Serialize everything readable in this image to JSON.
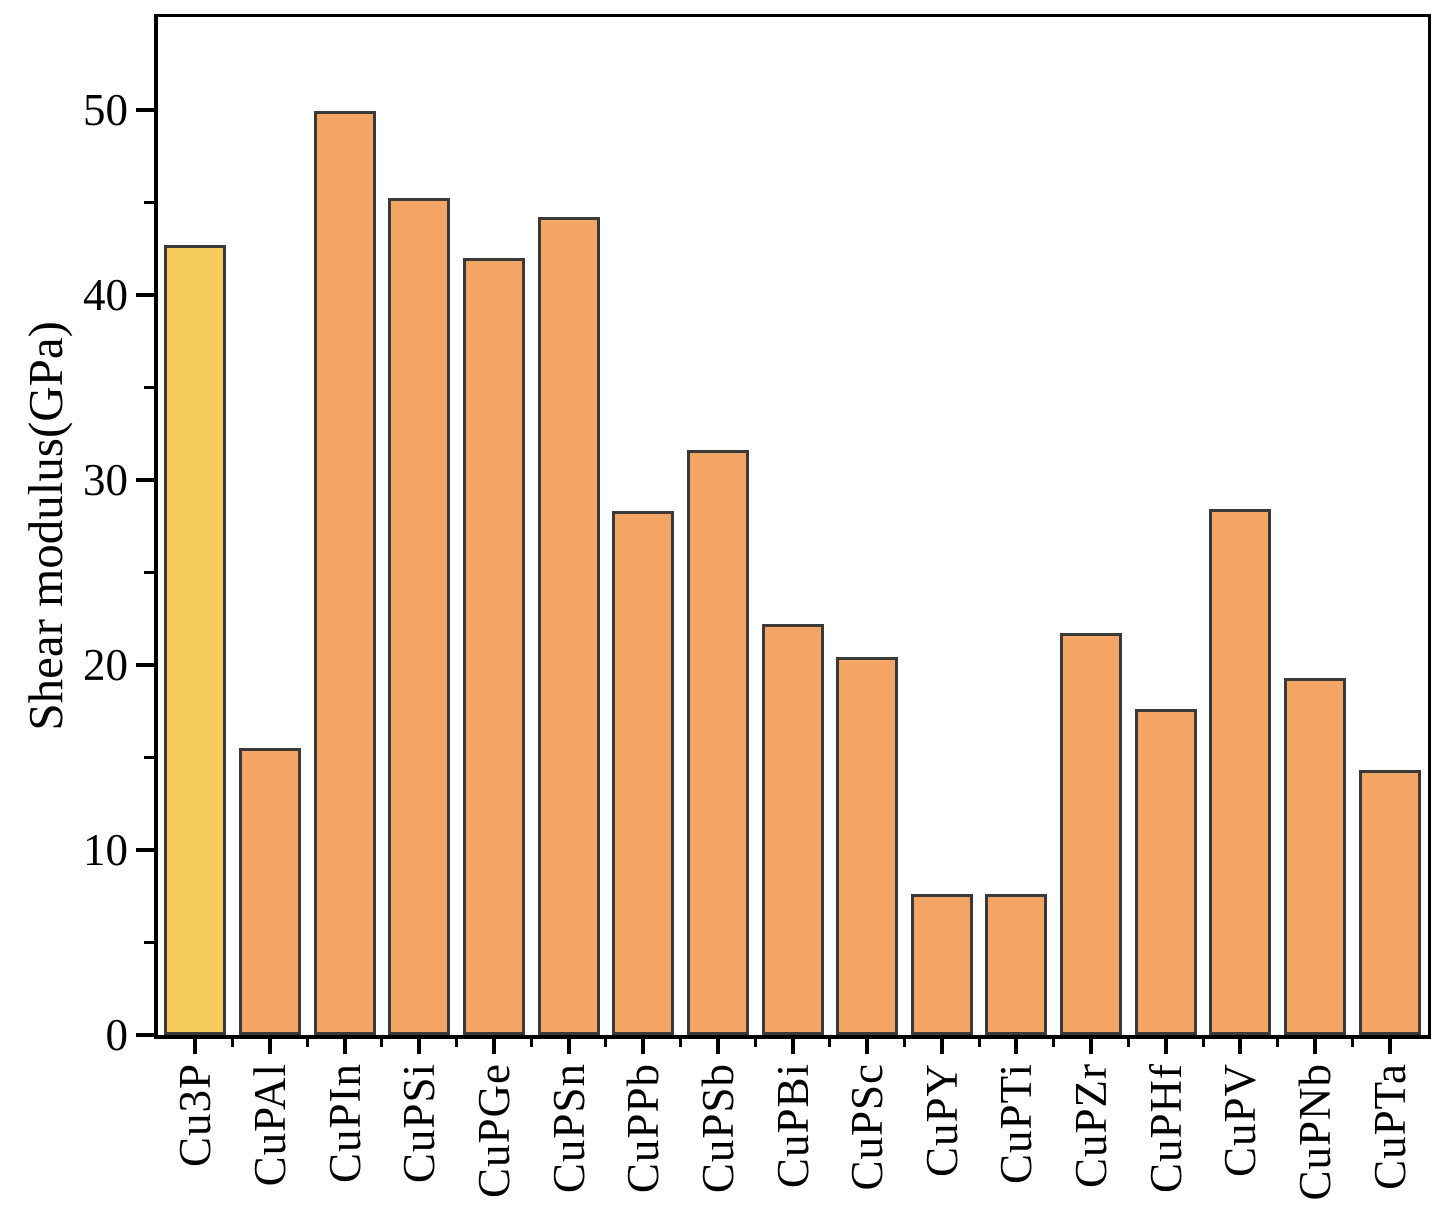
{
  "chart_data": {
    "type": "bar",
    "title": "",
    "xlabel": "",
    "ylabel": "Shear modulus(GPa)",
    "categories": [
      "Cu3P",
      "CuPAl",
      "CuPIn",
      "CuPSi",
      "CuPGe",
      "CuPSn",
      "CuPPb",
      "CuPSb",
      "CuPBi",
      "CuPSc",
      "CuPY",
      "CuPTi",
      "CuPZr",
      "CuPHf",
      "CuPV",
      "CuPNb",
      "CuPTa"
    ],
    "values": [
      42.7,
      15.5,
      49.9,
      45.2,
      42.0,
      44.2,
      28.3,
      31.6,
      22.2,
      20.4,
      7.6,
      7.6,
      21.7,
      17.6,
      28.4,
      19.3,
      14.3
    ],
    "ylim": [
      0,
      55
    ],
    "y_major_ticks": [
      0,
      10,
      20,
      30,
      40,
      50
    ],
    "y_tick_labels": [
      "0",
      "10",
      "20",
      "30",
      "40",
      "50"
    ],
    "y_minor_ticks": [
      5,
      15,
      25,
      35,
      45
    ],
    "grid": false,
    "legend": "none",
    "highlight_index": 0,
    "colors": {
      "highlight_bar": "#F6CD5C",
      "default_bar": "#F2A565",
      "bar_edge": "#3a3a38",
      "axis": "#000000"
    }
  }
}
